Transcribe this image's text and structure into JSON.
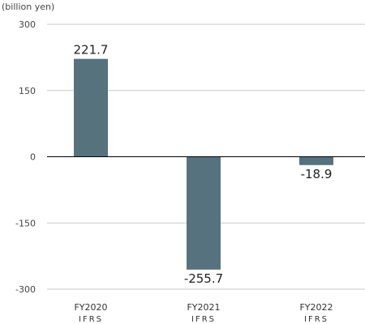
{
  "chart_data": {
    "type": "bar",
    "unit_label": "(billion yen)",
    "categories": [
      "FY2020",
      "FY2021",
      "FY2022"
    ],
    "category_sublabels": [
      "IFRS",
      "IFRS",
      "IFRS"
    ],
    "values": [
      221.7,
      -255.7,
      -18.9
    ],
    "value_labels": [
      "221.7",
      "-255.7",
      "-18.9"
    ],
    "yticks": [
      300,
      150,
      0,
      -150,
      -300
    ],
    "ytick_labels": [
      "300",
      "150",
      "0",
      "-150",
      "-300"
    ],
    "ylim": [
      -300,
      300
    ],
    "grid": true,
    "bar_color": "#56737d",
    "grid_color": "#c8c8c8",
    "zero_line_color": "#000000"
  }
}
